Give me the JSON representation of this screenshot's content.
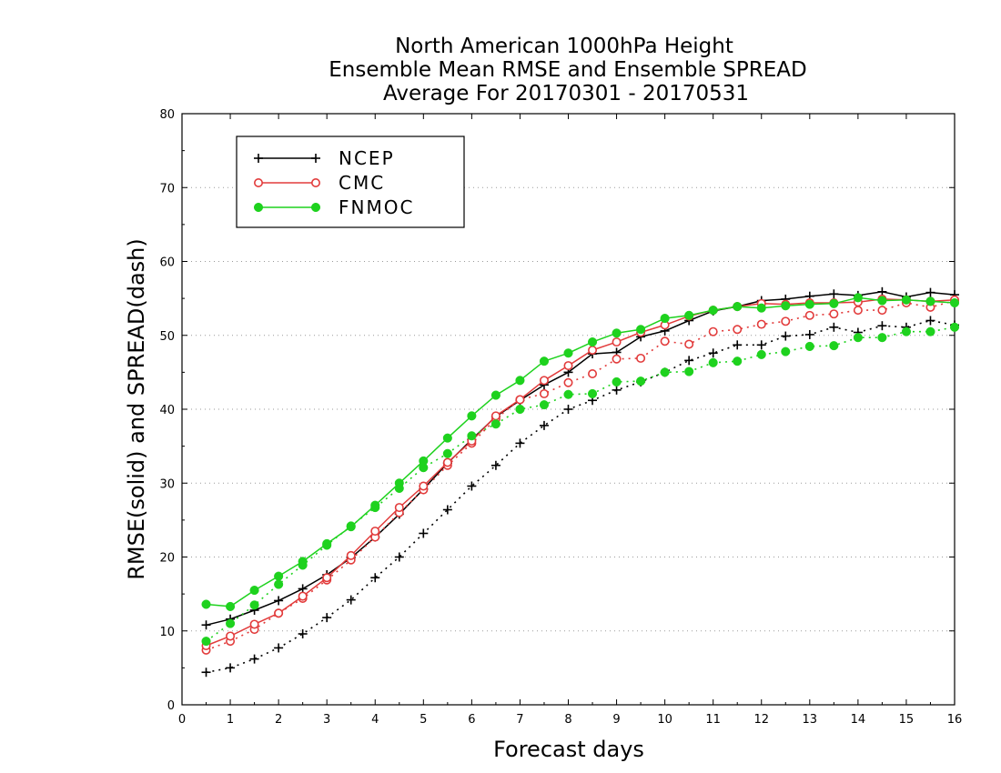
{
  "chart_data": {
    "type": "line",
    "title": [
      "North American 1000hPa Height",
      "Ensemble Mean RMSE and Ensemble SPREAD",
      "Average For 20170301 - 20170531"
    ],
    "xlabel": "Forecast days",
    "ylabel": "RMSE(solid) and SPREAD(dash)",
    "xlim": [
      0,
      16
    ],
    "ylim": [
      0,
      80
    ],
    "x_ticks": [
      "0",
      "1",
      "2",
      "3",
      "4",
      "5",
      "6",
      "7",
      "8",
      "9",
      "10",
      "11",
      "12",
      "13",
      "14",
      "15",
      "16"
    ],
    "y_ticks": [
      "0",
      "10",
      "20",
      "30",
      "40",
      "50",
      "60",
      "70",
      "80"
    ],
    "grid": "horizontal dotted",
    "legend_position": "top-left",
    "x": [
      0.5,
      1.0,
      1.5,
      2.0,
      2.5,
      3.0,
      3.5,
      4.0,
      4.5,
      5.0,
      5.5,
      6.0,
      6.5,
      7.0,
      7.5,
      8.0,
      8.5,
      9.0,
      9.5,
      10.0,
      10.5,
      11.0,
      11.5,
      12.0,
      12.5,
      13.0,
      13.5,
      14.0,
      14.5,
      15.0,
      15.5,
      16.0
    ],
    "series": [
      {
        "name": "NCEP",
        "color": "#000000",
        "marker": "plus",
        "rmse": [
          10.8,
          11.6,
          12.8,
          14.1,
          15.7,
          17.6,
          19.9,
          22.7,
          25.8,
          29.2,
          32.7,
          35.9,
          39.0,
          41.2,
          43.3,
          45.0,
          47.5,
          47.7,
          49.8,
          50.6,
          52.0,
          53.3,
          53.9,
          54.7,
          54.9,
          55.3,
          55.6,
          55.4,
          55.9,
          55.2,
          55.8,
          55.5
        ],
        "spread": [
          4.4,
          5.0,
          6.2,
          7.7,
          9.6,
          11.8,
          14.2,
          17.2,
          20.0,
          23.2,
          26.4,
          29.6,
          32.4,
          35.4,
          37.8,
          40.0,
          41.2,
          42.6,
          43.7,
          45.0,
          46.6,
          47.6,
          48.7,
          48.7,
          49.9,
          50.1,
          51.1,
          50.4,
          51.3,
          51.1,
          52.0,
          51.4
        ]
      },
      {
        "name": "CMC",
        "color": "#e23b3b",
        "marker": "open-circle",
        "rmse": [
          8.0,
          9.3,
          10.9,
          12.4,
          14.7,
          17.2,
          20.2,
          23.5,
          26.7,
          29.6,
          32.8,
          35.7,
          39.1,
          41.3,
          43.9,
          45.9,
          48.0,
          49.1,
          50.4,
          51.4,
          52.6,
          53.4,
          53.9,
          54.3,
          54.2,
          54.4,
          54.4,
          54.5,
          54.9,
          54.8,
          54.6,
          54.8
        ],
        "spread": [
          7.4,
          8.6,
          10.2,
          12.4,
          14.4,
          16.9,
          19.6,
          22.7,
          26.0,
          29.1,
          32.4,
          35.4,
          38.7,
          41.3,
          42.1,
          43.6,
          44.8,
          46.8,
          46.9,
          49.2,
          48.8,
          50.5,
          50.8,
          51.5,
          51.9,
          52.7,
          52.9,
          53.4,
          53.4,
          54.4,
          53.8,
          54.7
        ]
      },
      {
        "name": "FNMOC",
        "color": "#1ed21e",
        "marker": "filled-circle",
        "rmse": [
          13.6,
          13.3,
          15.5,
          17.4,
          19.4,
          21.8,
          24.1,
          27.0,
          30.0,
          33.0,
          36.1,
          39.1,
          41.9,
          43.9,
          46.5,
          47.6,
          49.1,
          50.3,
          50.8,
          52.3,
          52.7,
          53.4,
          53.9,
          53.7,
          54.0,
          54.2,
          54.3,
          55.1,
          54.7,
          54.8,
          54.6,
          54.4
        ],
        "spread": [
          8.6,
          11.0,
          13.5,
          16.3,
          18.9,
          21.6,
          24.2,
          26.7,
          29.3,
          32.1,
          34.0,
          36.4,
          38.0,
          40.0,
          40.6,
          42.0,
          42.1,
          43.7,
          43.8,
          45.0,
          45.1,
          46.3,
          46.5,
          47.4,
          47.8,
          48.5,
          48.6,
          49.7,
          49.7,
          50.5,
          50.5,
          51.1
        ]
      }
    ]
  }
}
